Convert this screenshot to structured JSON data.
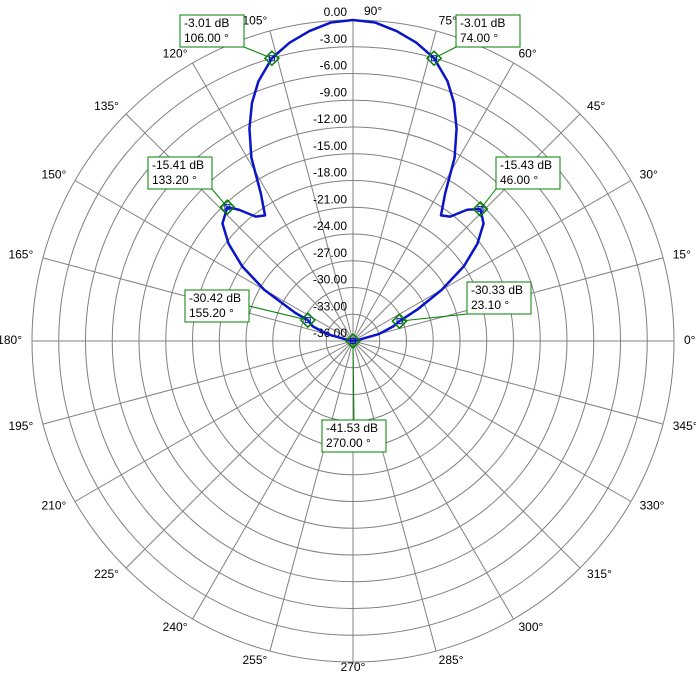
{
  "chart_data": {
    "type": "polar",
    "rlim": [
      -36,
      0
    ],
    "rticks": [
      {
        "value": 0,
        "label": "0.00"
      },
      {
        "value": -3,
        "label": "-3.00"
      },
      {
        "value": -6,
        "label": "-6.00"
      },
      {
        "value": -9,
        "label": "-9.00"
      },
      {
        "value": -12,
        "label": "-12.00"
      },
      {
        "value": -15,
        "label": "-15.00"
      },
      {
        "value": -18,
        "label": "-18.00"
      },
      {
        "value": -21,
        "label": "-21.00"
      },
      {
        "value": -24,
        "label": "-24.00"
      },
      {
        "value": -27,
        "label": "-27.00"
      },
      {
        "value": -30,
        "label": "-30.00"
      },
      {
        "value": -33,
        "label": "-33.00"
      },
      {
        "value": -36,
        "label": "-36.00"
      }
    ],
    "angle_ticks": [
      {
        "value": 0,
        "label": "0°"
      },
      {
        "value": 15,
        "label": "15°"
      },
      {
        "value": 30,
        "label": "30°"
      },
      {
        "value": 45,
        "label": "45°"
      },
      {
        "value": 60,
        "label": "60°"
      },
      {
        "value": 75,
        "label": "75°"
      },
      {
        "value": 90,
        "label": "90°"
      },
      {
        "value": 105,
        "label": "105°"
      },
      {
        "value": 120,
        "label": "120°"
      },
      {
        "value": 135,
        "label": "135°"
      },
      {
        "value": 150,
        "label": "150°"
      },
      {
        "value": 165,
        "label": "165°"
      },
      {
        "value": 180,
        "label": "180°"
      },
      {
        "value": 195,
        "label": "195°"
      },
      {
        "value": 210,
        "label": "210°"
      },
      {
        "value": 225,
        "label": "225°"
      },
      {
        "value": 240,
        "label": "240°"
      },
      {
        "value": 255,
        "label": "255°"
      },
      {
        "value": 270,
        "label": "270°"
      },
      {
        "value": 285,
        "label": "285°"
      },
      {
        "value": 300,
        "label": "300°"
      },
      {
        "value": 315,
        "label": "315°"
      },
      {
        "value": 330,
        "label": "330°"
      },
      {
        "value": 345,
        "label": "345°"
      }
    ],
    "grid": true,
    "series": [
      {
        "color": "#0a14c8",
        "x": [
          0,
          5,
          10,
          15,
          20,
          23.1,
          26,
          30,
          34,
          38,
          42,
          46,
          49,
          52,
          55,
          58,
          61,
          64,
          67,
          70,
          74,
          78,
          82,
          86,
          90,
          94,
          98,
          102,
          106,
          110,
          113,
          116,
          119,
          122,
          125,
          128,
          131,
          133.2,
          138,
          142,
          146,
          150,
          154,
          155.2,
          160,
          165,
          170,
          175,
          180,
          190,
          210,
          230,
          250,
          270,
          290,
          310,
          330,
          350
        ],
        "values": [
          -40,
          -38,
          -35.5,
          -33,
          -31.2,
          -30.33,
          -28,
          -24.5,
          -21,
          -18.3,
          -16.3,
          -15.43,
          -16.5,
          -18.3,
          -18.8,
          -16.5,
          -12.5,
          -9.5,
          -7,
          -5,
          -3.01,
          -1.8,
          -0.9,
          -0.2,
          0,
          -0.2,
          -0.9,
          -1.8,
          -3.01,
          -5,
          -7,
          -9.5,
          -12.5,
          -16.5,
          -18.8,
          -18.3,
          -16.5,
          -15.41,
          -16.3,
          -18.3,
          -21,
          -24.5,
          -28.8,
          -30.42,
          -31.2,
          -33,
          -35.5,
          -38,
          -40,
          -41,
          -42,
          -41.2,
          -42.5,
          -41.53,
          -42.3,
          -41.4,
          -42,
          -41
        ]
      }
    ],
    "markers": [
      {
        "angle": 106,
        "value": -3.01,
        "db_label": "-3.01 dB",
        "angle_label": "106.00 °"
      },
      {
        "angle": 74,
        "value": -3.01,
        "db_label": "-3.01 dB",
        "angle_label": "74.00 °"
      },
      {
        "angle": 133.2,
        "value": -15.41,
        "db_label": "-15.41 dB",
        "angle_label": "133.20 °"
      },
      {
        "angle": 46,
        "value": -15.43,
        "db_label": "-15.43 dB",
        "angle_label": "46.00 °"
      },
      {
        "angle": 155.2,
        "value": -30.42,
        "db_label": "-30.42 dB",
        "angle_label": "155.20 °"
      },
      {
        "angle": 23.1,
        "value": -30.33,
        "db_label": "-30.33 dB",
        "angle_label": "23.10 °"
      },
      {
        "angle": 270,
        "value": -41.53,
        "db_label": "-41.53 dB",
        "angle_label": "270.00 °"
      }
    ]
  }
}
